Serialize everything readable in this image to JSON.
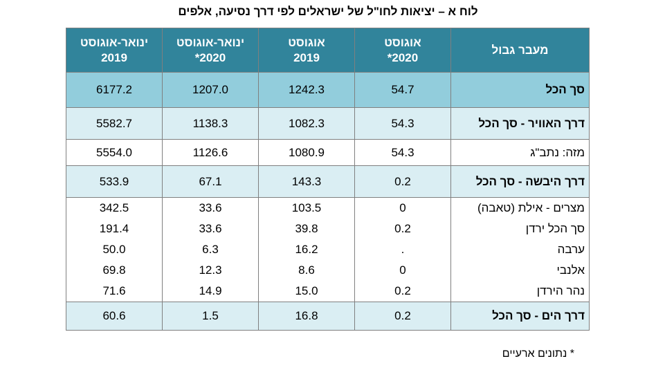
{
  "title": "לוח א – יציאות לחו\"ל של ישראלים לפי דרך נסיעה, אלפים",
  "headers": {
    "crossing": "מעבר גבול",
    "aug2020": "אוגוסט\n2020*",
    "aug2019": "אוגוסט\n2019",
    "janaug2020": "ינואר-אוגוסט\n2020*",
    "janaug2019": "ינואר-אוגוסט\n2019"
  },
  "rows": [
    {
      "label": "סך הכל",
      "aug2020": "54.7",
      "aug2019": "1242.3",
      "janaug2020": "1207.0",
      "janaug2019": "6177.2"
    },
    {
      "label": "דרך האוויר - סך הכל",
      "aug2020": "54.3",
      "aug2019": "1082.3",
      "janaug2020": "1138.3",
      "janaug2019": "5582.7"
    },
    {
      "label": "מזה: נתב\"ג",
      "aug2020": "54.3",
      "aug2019": "1080.9",
      "janaug2020": "1126.6",
      "janaug2019": "5554.0"
    },
    {
      "label": "דרך היבשה - סך הכל",
      "aug2020": "0.2",
      "aug2019": "143.3",
      "janaug2020": "67.1",
      "janaug2019": "533.9"
    },
    {
      "label": "מצרים - אילת (טאבה)",
      "aug2020": "0",
      "aug2019": "103.5",
      "janaug2020": "33.6",
      "janaug2019": "342.5"
    },
    {
      "label": "סך הכל ירדן",
      "aug2020": "0.2",
      "aug2019": "39.8",
      "janaug2020": "33.6",
      "janaug2019": "191.4"
    },
    {
      "label": "ערבה",
      "aug2020": ".",
      "aug2019": "16.2",
      "janaug2020": "6.3",
      "janaug2019": "50.0"
    },
    {
      "label": "אלנבי",
      "aug2020": "0",
      "aug2019": "8.6",
      "janaug2020": "12.3",
      "janaug2019": "69.8"
    },
    {
      "label": "נהר הירדן",
      "aug2020": "0.2",
      "aug2019": "15.0",
      "janaug2020": "14.9",
      "janaug2019": "71.6"
    },
    {
      "label": "דרך הים - סך הכל",
      "aug2020": "0.2",
      "aug2019": "16.8",
      "janaug2020": "1.5",
      "janaug2019": "60.6"
    }
  ],
  "footnote": "* נתונים ארעיים",
  "colors": {
    "header": "#31849b",
    "total": "#92cddc",
    "subtotal": "#daeef3"
  }
}
